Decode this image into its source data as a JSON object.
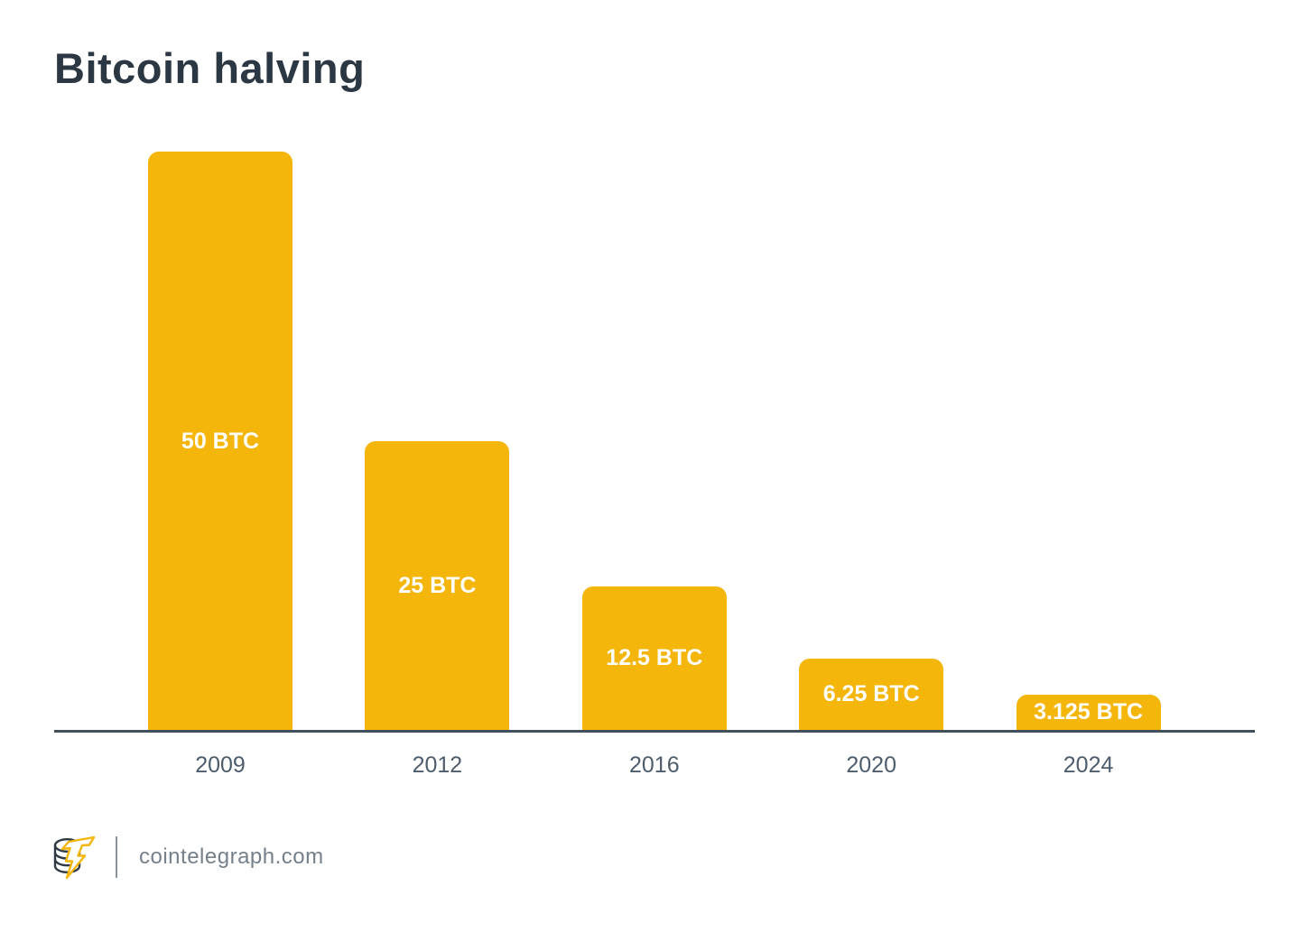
{
  "chart_data": {
    "type": "bar",
    "title": "Bitcoin halving",
    "categories": [
      "2009",
      "2012",
      "2016",
      "2020",
      "2024"
    ],
    "values": [
      50,
      25,
      12.5,
      6.25,
      3.125
    ],
    "bar_labels": [
      "50 BTC",
      "25 BTC",
      "12.5 BTC",
      "6.25 BTC",
      "3.125 BTC"
    ],
    "unit": "BTC",
    "xlabel": "",
    "ylabel": "",
    "ylim": [
      0,
      50
    ],
    "grid": false,
    "legend": false,
    "bar_color": "#F4B60B",
    "bar_label_color": "#FFFFFF",
    "axis_line_color": "#42505C",
    "tick_label_color": "#4E5D6B",
    "title_color": "#2B3843"
  },
  "footer": {
    "site": "cointelegraph.com",
    "logo_icon": "cointelegraph-coin-bolt-logo",
    "logo_coin_color": "#2E3B44",
    "logo_bolt_color": "#F4B60B",
    "text_color": "#75808A",
    "divider_color": "#8B949B"
  }
}
